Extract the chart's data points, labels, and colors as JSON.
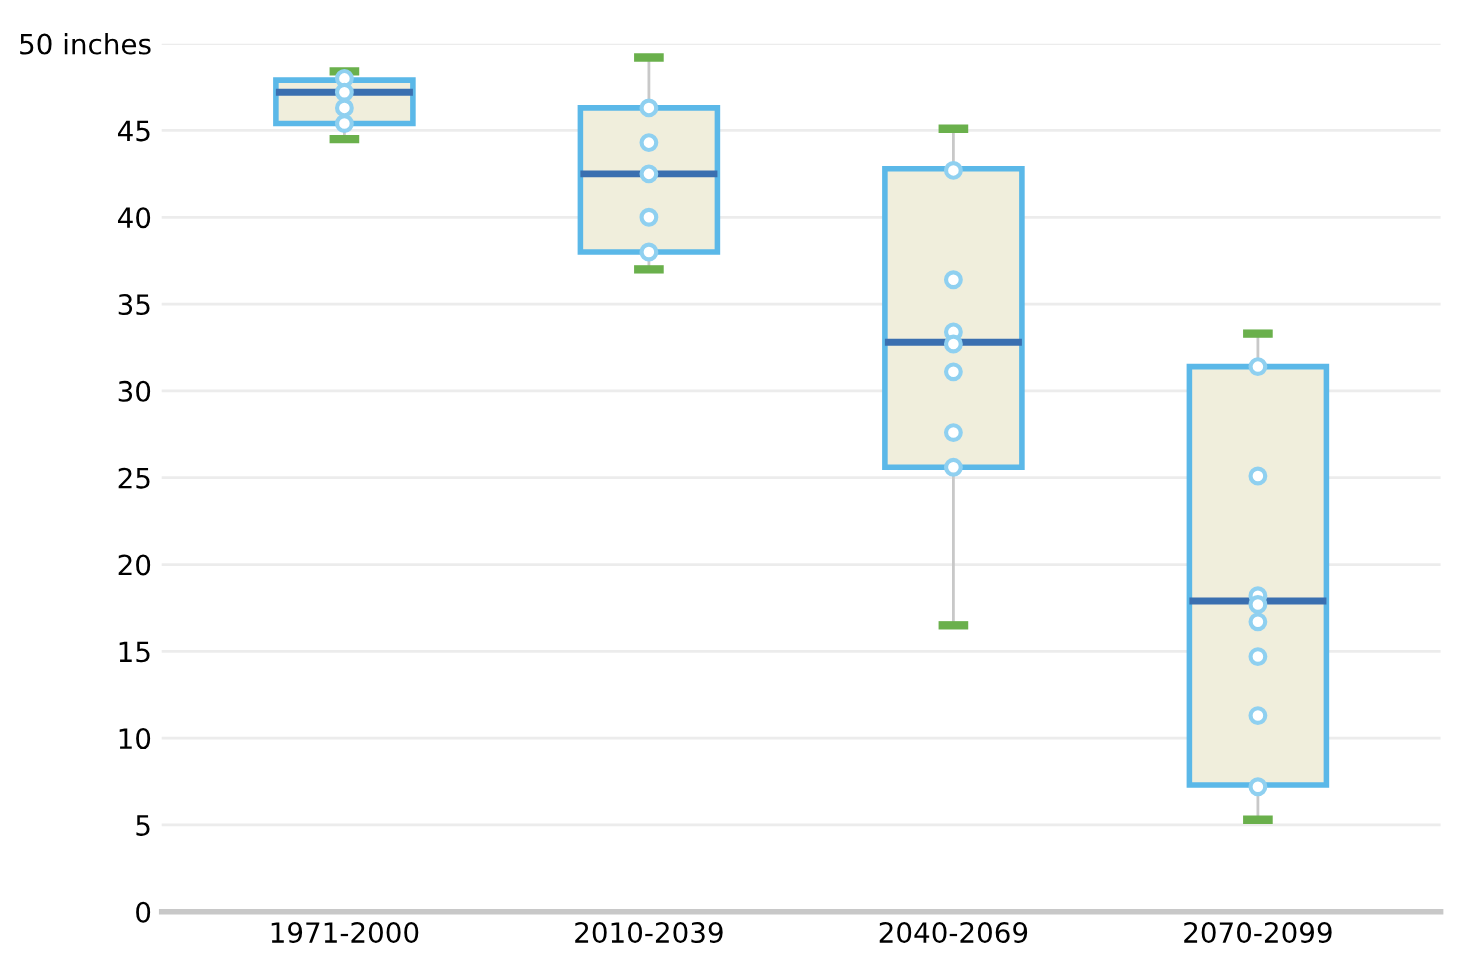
{
  "chart_data": {
    "type": "box",
    "categories": [
      "1971-2000",
      "2010-2039",
      "2040-2069",
      "2070-2099"
    ],
    "boxes": [
      {
        "low": 44.5,
        "q1": 45.4,
        "median": 47.2,
        "q3": 47.9,
        "high": 48.4
      },
      {
        "low": 37.0,
        "q1": 38.0,
        "median": 42.5,
        "q3": 46.3,
        "high": 49.2
      },
      {
        "low": 16.5,
        "q1": 25.6,
        "median": 32.8,
        "q3": 42.8,
        "high": 45.1
      },
      {
        "low": 5.3,
        "q1": 7.3,
        "median": 17.9,
        "q3": 31.4,
        "high": 33.3
      }
    ],
    "color": "#5bb8e8",
    "series": [
      {
        "type": "scatter",
        "color": "#8fd0f0",
        "x": [
          "1971-2000",
          "1971-2000",
          "1971-2000",
          "1971-2000",
          "2010-2039",
          "2010-2039",
          "2010-2039",
          "2010-2039",
          "2010-2039",
          "2040-2069",
          "2040-2069",
          "2040-2069",
          "2040-2069",
          "2040-2069",
          "2040-2069",
          "2040-2069",
          "2070-2099",
          "2070-2099",
          "2070-2099",
          "2070-2099",
          "2070-2099",
          "2070-2099",
          "2070-2099",
          "2070-2099"
        ],
        "values": [
          48.0,
          47.2,
          46.3,
          45.4,
          46.3,
          44.3,
          42.5,
          40.0,
          38.0,
          42.7,
          36.4,
          33.4,
          32.7,
          31.1,
          27.6,
          25.6,
          31.4,
          25.1,
          18.2,
          17.7,
          16.7,
          14.7,
          11.3,
          7.2
        ]
      }
    ],
    "ylim": [
      0,
      50
    ],
    "yticks": [
      0,
      5,
      10,
      15,
      20,
      25,
      30,
      35,
      40,
      45,
      {
        "value": 50,
        "label": "50 inches"
      }
    ],
    "grid": "y",
    "marker": "circle"
  }
}
